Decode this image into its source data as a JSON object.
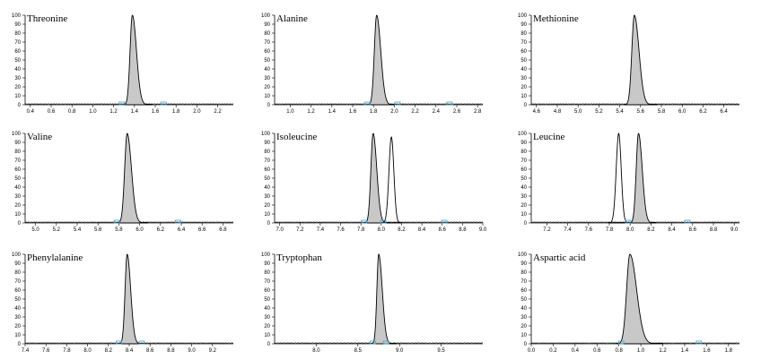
{
  "chart_data": [
    {
      "type": "line",
      "title": "Threonine",
      "yticks": [
        "0",
        "10",
        "20",
        "30",
        "40",
        "50",
        "60",
        "70",
        "80",
        "90",
        "100"
      ],
      "ylim": [
        0,
        100
      ],
      "xlim": [
        0.35,
        2.35
      ],
      "xticks": [
        "0.4",
        "0.6",
        "0.8",
        "1.0",
        "1.2",
        "1.4",
        "1.6",
        "1.8",
        "2.0",
        "2.2"
      ],
      "xtick_values": [
        0.4,
        0.6,
        0.8,
        1.0,
        1.2,
        1.4,
        1.6,
        1.8,
        2.0,
        2.2
      ],
      "peaks": [
        {
          "center": 1.38,
          "width": 0.022,
          "height": 100,
          "filled": true,
          "tail": 0.05
        }
      ],
      "markers": [
        1.28,
        1.68
      ]
    },
    {
      "type": "line",
      "title": "Alanine",
      "yticks": [
        "0",
        "10",
        "20",
        "30",
        "40",
        "50",
        "60",
        "70",
        "80",
        "90",
        "100"
      ],
      "ylim": [
        0,
        100
      ],
      "xlim": [
        0.85,
        2.85
      ],
      "xticks": [
        "1.0",
        "1.2",
        "1.4",
        "1.6",
        "1.8",
        "2.0",
        "2.2",
        "2.4",
        "2.6",
        "2.8"
      ],
      "xtick_values": [
        1.0,
        1.2,
        1.4,
        1.6,
        1.8,
        2.0,
        2.2,
        2.4,
        2.6,
        2.8
      ],
      "peaks": [
        {
          "center": 1.83,
          "width": 0.022,
          "height": 100,
          "filled": true,
          "tail": 0.05
        }
      ],
      "markers": [
        1.74,
        2.03,
        2.53
      ]
    },
    {
      "type": "line",
      "title": "Methionine",
      "yticks": [
        "0",
        "10",
        "20",
        "30",
        "40",
        "50",
        "60",
        "70",
        "80",
        "90",
        "100"
      ],
      "ylim": [
        0,
        100
      ],
      "xlim": [
        4.55,
        6.55
      ],
      "xticks": [
        "4.6",
        "4.8",
        "5.0",
        "5.2",
        "5.4",
        "5.6",
        "5.8",
        "6.0",
        "6.2",
        "6.4"
      ],
      "xtick_values": [
        4.6,
        4.8,
        5.0,
        5.2,
        5.4,
        5.6,
        5.8,
        6.0,
        6.2,
        6.4
      ],
      "peaks": [
        {
          "center": 5.54,
          "width": 0.024,
          "height": 100,
          "filled": true,
          "tail": 0.06
        }
      ],
      "markers": []
    },
    {
      "type": "line",
      "title": "Valine",
      "yticks": [
        "0",
        "10",
        "20",
        "30",
        "40",
        "50",
        "60",
        "70",
        "80",
        "90",
        "100"
      ],
      "ylim": [
        0,
        100
      ],
      "xlim": [
        4.9,
        6.9
      ],
      "xticks": [
        "5.0",
        "5.2",
        "5.4",
        "5.6",
        "5.8",
        "6.0",
        "6.2",
        "6.4",
        "6.6",
        "6.8"
      ],
      "xtick_values": [
        5.0,
        5.2,
        5.4,
        5.6,
        5.8,
        6.0,
        6.2,
        6.4,
        6.6,
        6.8
      ],
      "peaks": [
        {
          "center": 5.88,
          "width": 0.024,
          "height": 100,
          "filled": true,
          "tail": 0.05
        }
      ],
      "markers": [
        5.78,
        6.37
      ]
    },
    {
      "type": "line",
      "title": "Isoleucine",
      "yticks": [
        "0",
        "10",
        "20",
        "30",
        "40",
        "50",
        "60",
        "70",
        "80",
        "90",
        "100"
      ],
      "ylim": [
        0,
        100
      ],
      "xlim": [
        6.95,
        9.0
      ],
      "xticks": [
        "7.0",
        "7.2",
        "7.4",
        "7.6",
        "7.8",
        "8.0",
        "8.2",
        "8.4",
        "8.6",
        "8.8",
        "9.0"
      ],
      "xtick_values": [
        7.0,
        7.2,
        7.4,
        7.6,
        7.8,
        8.0,
        8.2,
        8.4,
        8.6,
        8.8,
        9.0
      ],
      "peaks": [
        {
          "center": 7.92,
          "width": 0.022,
          "height": 100,
          "filled": true,
          "tail": 0.04
        },
        {
          "center": 8.1,
          "width": 0.024,
          "height": 96,
          "filled": false,
          "tail": 0.0
        }
      ],
      "markers": [
        7.83,
        8.02,
        8.62
      ]
    },
    {
      "type": "line",
      "title": "Leucine",
      "yticks": [
        "0",
        "10",
        "20",
        "30",
        "40",
        "50",
        "60",
        "70",
        "80",
        "90",
        "100"
      ],
      "ylim": [
        0,
        100
      ],
      "xlim": [
        7.05,
        9.05
      ],
      "xticks": [
        "7.2",
        "7.4",
        "7.6",
        "7.8",
        "8.0",
        "8.2",
        "8.4",
        "8.6",
        "8.8",
        "9.0"
      ],
      "xtick_values": [
        7.2,
        7.4,
        7.6,
        7.8,
        8.0,
        8.2,
        8.4,
        8.6,
        8.8,
        9.0
      ],
      "peaks": [
        {
          "center": 8.08,
          "width": 0.022,
          "height": 100,
          "filled": true,
          "tail": 0.04
        },
        {
          "center": 7.89,
          "width": 0.024,
          "height": 100,
          "filled": false,
          "tail": 0.0
        }
      ],
      "markers": [
        7.98,
        8.55
      ]
    },
    {
      "type": "line",
      "title": "Phenylalanine",
      "yticks": [
        "0",
        "10",
        "20",
        "30",
        "40",
        "50",
        "60",
        "70",
        "80",
        "90",
        "100"
      ],
      "ylim": [
        0,
        100
      ],
      "xlim": [
        7.4,
        9.4
      ],
      "xticks": [
        "7.4",
        "7.6",
        "7.8",
        "8.0",
        "8.2",
        "8.4",
        "8.6",
        "8.8",
        "9.0",
        "9.2"
      ],
      "xtick_values": [
        7.4,
        7.6,
        7.8,
        8.0,
        8.2,
        8.4,
        8.6,
        8.8,
        9.0,
        9.2
      ],
      "peaks": [
        {
          "center": 8.38,
          "width": 0.02,
          "height": 100,
          "filled": true,
          "tail": 0.04
        }
      ],
      "markers": [
        8.3,
        8.52
      ]
    },
    {
      "type": "line",
      "title": "Tryptophan",
      "yticks": [
        "0",
        "10",
        "20",
        "30",
        "40",
        "50",
        "60",
        "70",
        "80",
        "90",
        "100"
      ],
      "ylim": [
        0,
        100
      ],
      "xlim": [
        7.5,
        10.0
      ],
      "xticks": [
        "8.0",
        "8.5",
        "9.0",
        "9.5"
      ],
      "xtick_values": [
        8.0,
        8.5,
        9.0,
        9.5
      ],
      "peaks": [
        {
          "center": 8.75,
          "width": 0.022,
          "height": 100,
          "filled": true,
          "tail": 0.06
        }
      ],
      "markers": [
        8.68,
        8.84
      ]
    },
    {
      "type": "line",
      "title": "Aspartic acid",
      "yticks": [
        "0",
        "10",
        "20",
        "30",
        "40",
        "50",
        "60",
        "70",
        "80",
        "90",
        "100"
      ],
      "ylim": [
        0,
        100
      ],
      "xlim": [
        0.0,
        1.9
      ],
      "xticks": [
        "0.0",
        "0.2",
        "0.4",
        "0.6",
        "0.8",
        "1.0",
        "1.2",
        "1.4",
        "1.6",
        "1.8"
      ],
      "xtick_values": [
        0.0,
        0.2,
        0.4,
        0.6,
        0.8,
        1.0,
        1.2,
        1.4,
        1.6,
        1.8
      ],
      "peaks": [
        {
          "center": 0.9,
          "width": 0.03,
          "height": 100,
          "filled": true,
          "tail": 0.09
        }
      ],
      "markers": [
        0.82,
        1.53
      ]
    }
  ],
  "colors": {
    "fill": "#c8c8c8",
    "line": "#000000",
    "marker": "#4a9fc8"
  }
}
